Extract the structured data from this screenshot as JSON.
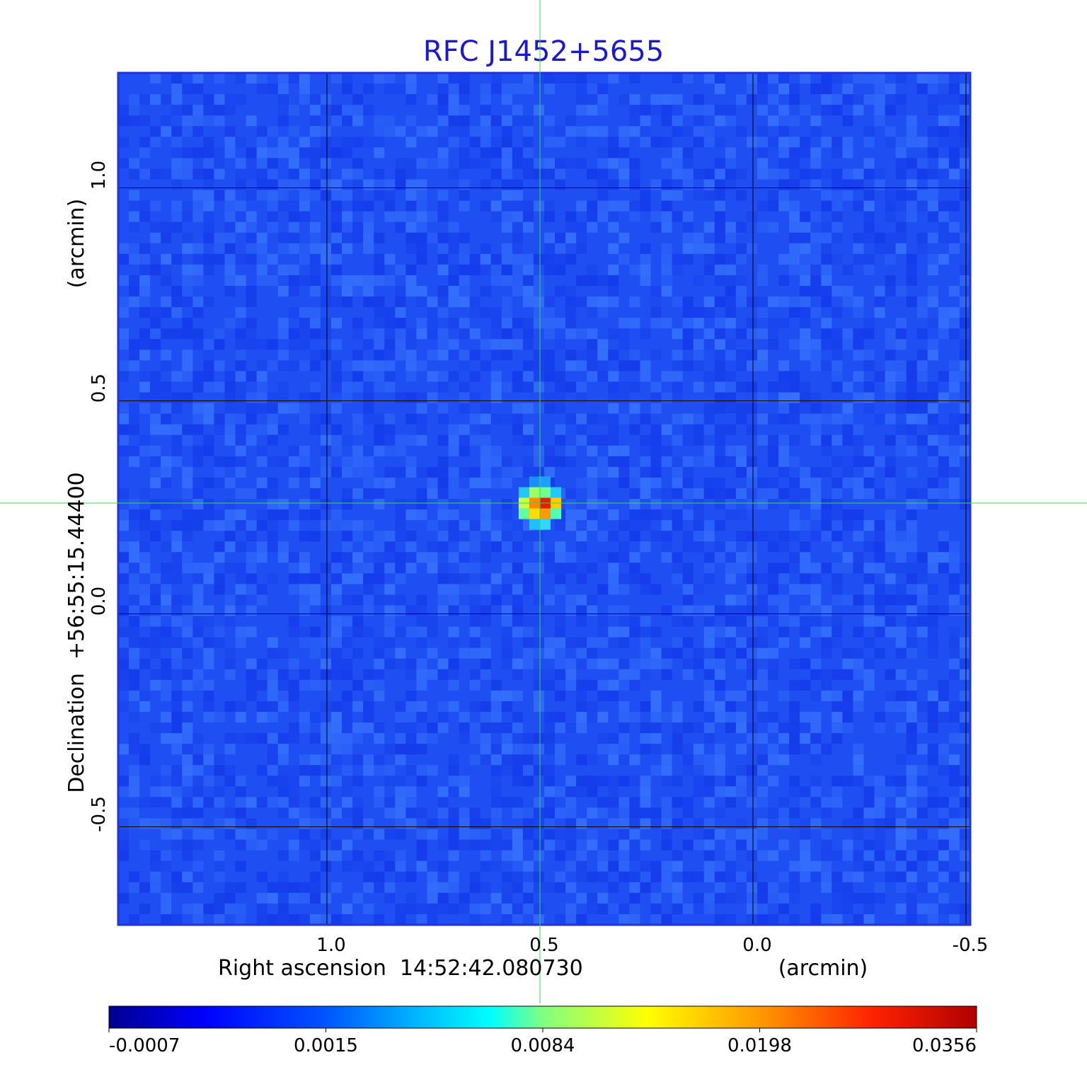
{
  "chart_data": {
    "type": "heatmap",
    "title": "RFC J1452+5655",
    "xlabel": "Right ascension  14:52:42.080730",
    "xunit": "(arcmin)",
    "ylabel": "Declination  +56:55:15.44400",
    "yunit": "(arcmin)",
    "x_axis": {
      "direction": "reversed",
      "range": [
        1.49,
        -0.51
      ],
      "ticks": [
        1.0,
        0.5,
        0.0,
        -0.5
      ],
      "tick_labels": [
        "1.0",
        "0.5",
        "0.0",
        "-0.5"
      ]
    },
    "y_axis": {
      "range": [
        -0.73,
        1.27
      ],
      "ticks": [
        -0.5,
        0.0,
        0.5,
        1.0
      ],
      "tick_labels": [
        "-0.5",
        "0.0",
        "0.5",
        "1.0"
      ]
    },
    "grid": true,
    "source": {
      "x": 0.5,
      "y": 0.26,
      "peak": 0.0356
    },
    "crosshair": {
      "x": 0.5,
      "y": 0.26,
      "color": "#33dd55"
    },
    "colorbar": {
      "placement": "bottom",
      "colormap": "jet",
      "tick_labels": [
        "-0.0007",
        "0.0015",
        "0.0084",
        "0.0198",
        "0.0356"
      ]
    },
    "colors": {
      "title": "#1a1acc",
      "background_field": "#1f4ff2",
      "frame": "#2233dd",
      "grid": "#000000"
    }
  }
}
